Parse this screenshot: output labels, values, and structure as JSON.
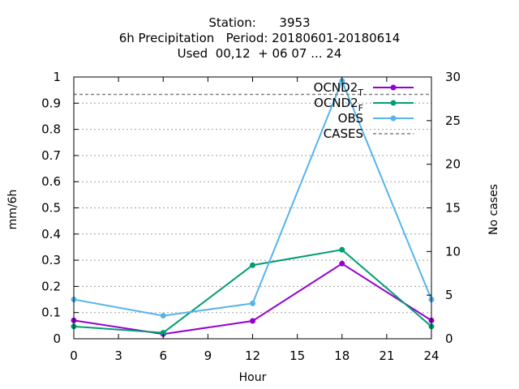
{
  "chart_data": {
    "type": "line",
    "title_lines": [
      "Station:      3953",
      "6h Precipitation   Period: 20180601-20180614",
      "Used  00,12  + 06 07 ... 24"
    ],
    "xlabel": "Hour",
    "ylabel": "mm/6h",
    "y2label": "No cases",
    "xlim": [
      0,
      24
    ],
    "ylim": [
      0,
      1
    ],
    "y2lim": [
      0,
      30
    ],
    "xticks": [
      "0",
      "3",
      "6",
      "9",
      "12",
      "15",
      "18",
      "21",
      "24"
    ],
    "yticks": [
      "0",
      "0.1",
      "0.2",
      "0.3",
      "0.4",
      "0.5",
      "0.6",
      "0.7",
      "0.8",
      "0.9",
      "1"
    ],
    "y2ticks": [
      "0",
      "5",
      "10",
      "15",
      "20",
      "25",
      "30"
    ],
    "grid": true,
    "legend_position": "top-right",
    "series": [
      {
        "name": "OCND2",
        "subscript": "T",
        "color": "#9400d3",
        "marker": "circle",
        "axis": "y",
        "x": [
          0,
          6,
          12,
          18,
          24
        ],
        "y": [
          0.07,
          0.018,
          0.068,
          0.287,
          0.07
        ]
      },
      {
        "name": "OCND2",
        "subscript": "F",
        "color": "#009e73",
        "marker": "circle",
        "axis": "y",
        "x": [
          0,
          6,
          12,
          18,
          24
        ],
        "y": [
          0.047,
          0.023,
          0.281,
          0.34,
          0.047
        ]
      },
      {
        "name": "OBS",
        "subscript": "",
        "color": "#56b4e9",
        "marker": "circle",
        "axis": "y",
        "x": [
          0,
          6,
          12,
          18,
          24
        ],
        "y": [
          0.15,
          0.088,
          0.135,
          0.985,
          0.15
        ]
      },
      {
        "name": "CASES",
        "subscript": "",
        "color": "#808080",
        "marker": "none",
        "axis": "y2",
        "dashed": true,
        "x": [
          0,
          24
        ],
        "y": [
          28,
          28
        ]
      }
    ]
  }
}
